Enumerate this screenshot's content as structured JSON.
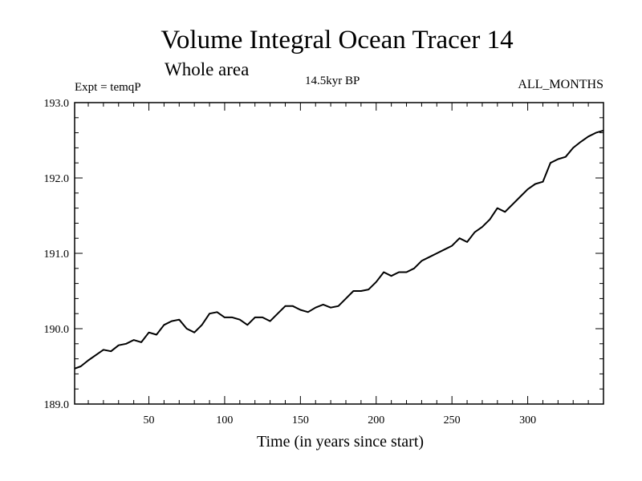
{
  "header": {
    "title": "Volume Integral Ocean Tracer 14",
    "subtitle": "Whole area",
    "expt": "Expt = temqP",
    "period": "14.5kyr BP",
    "months": "ALL_MONTHS"
  },
  "chart_data": {
    "type": "line",
    "title": "Volume Integral Ocean Tracer 14",
    "subtitle": "Whole area",
    "xlabel": "Time (in years since start)",
    "ylabel": "",
    "xlim": [
      1,
      350
    ],
    "ylim": [
      189.0,
      193.0
    ],
    "grid": false,
    "x_ticks": [
      50,
      100,
      150,
      200,
      250,
      300
    ],
    "x_tick_labels": [
      "50",
      "100",
      "150",
      "200",
      "250",
      "300"
    ],
    "y_ticks": [
      189.0,
      190.0,
      191.0,
      192.0,
      193.0
    ],
    "y_tick_labels": [
      "189.0",
      "190.0",
      "191.0",
      "192.0",
      "193.0"
    ],
    "series": [
      {
        "name": "Tracer 14",
        "x": [
          1,
          5,
          10,
          15,
          20,
          25,
          30,
          35,
          40,
          45,
          50,
          55,
          60,
          65,
          70,
          75,
          80,
          85,
          90,
          95,
          100,
          105,
          110,
          115,
          120,
          125,
          130,
          135,
          140,
          145,
          150,
          155,
          160,
          165,
          170,
          175,
          180,
          185,
          190,
          195,
          200,
          205,
          210,
          215,
          220,
          225,
          230,
          235,
          240,
          245,
          250,
          255,
          260,
          265,
          270,
          275,
          280,
          285,
          290,
          295,
          300,
          305,
          310,
          315,
          320,
          325,
          330,
          335,
          340,
          345,
          350
        ],
        "values": [
          189.47,
          189.5,
          189.58,
          189.65,
          189.72,
          189.7,
          189.78,
          189.8,
          189.85,
          189.82,
          189.95,
          189.92,
          190.05,
          190.1,
          190.12,
          190.0,
          189.95,
          190.05,
          190.2,
          190.22,
          190.15,
          190.15,
          190.12,
          190.05,
          190.15,
          190.15,
          190.1,
          190.2,
          190.3,
          190.3,
          190.25,
          190.22,
          190.28,
          190.32,
          190.28,
          190.3,
          190.4,
          190.5,
          190.5,
          190.52,
          190.62,
          190.75,
          190.7,
          190.75,
          190.75,
          190.8,
          190.9,
          190.95,
          191.0,
          191.05,
          191.1,
          191.2,
          191.15,
          191.28,
          191.35,
          191.45,
          191.6,
          191.55,
          191.65,
          191.75,
          191.85,
          191.92,
          191.95,
          192.2,
          192.25,
          192.28,
          192.4,
          192.48,
          192.55,
          192.6,
          192.63
        ]
      }
    ]
  }
}
